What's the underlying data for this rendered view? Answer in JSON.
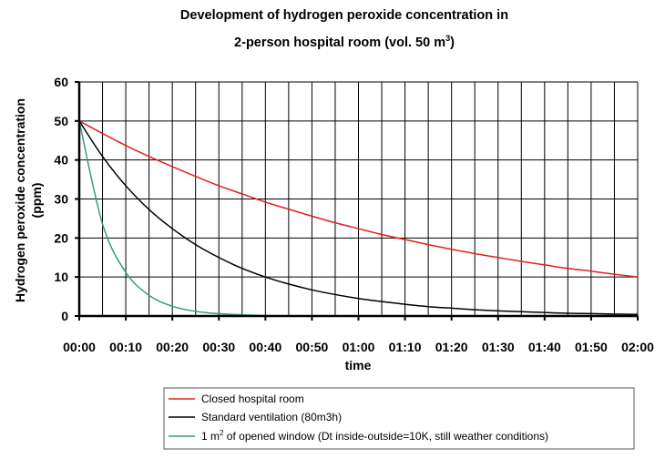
{
  "chart_data": {
    "type": "line",
    "title_line1": "Development of hydrogen peroxide concentration in",
    "title_line2_prefix": "2-person hospital room (vol. 50 m",
    "title_line2_sup": "3",
    "title_line2_suffix": ")",
    "ylabel_line1": "Hydrogen peroxide concentration",
    "ylabel_line2": "(ppm)",
    "xlabel": "time",
    "ylim": [
      0,
      60
    ],
    "yticks": [
      "0",
      "10",
      "20",
      "30",
      "40",
      "50",
      "60"
    ],
    "xlim_minutes": [
      0,
      120
    ],
    "xticks": [
      "00:00",
      "00:10",
      "00:20",
      "00:30",
      "00:40",
      "00:50",
      "01:00",
      "01:10",
      "01:20",
      "01:30",
      "01:40",
      "01:50",
      "02:00"
    ],
    "grid": true,
    "legend_placement": "bottom",
    "x_minutes": [
      0,
      5,
      10,
      15,
      20,
      25,
      30,
      35,
      40,
      45,
      50,
      55,
      60,
      65,
      70,
      75,
      80,
      85,
      90,
      95,
      100,
      105,
      110,
      115,
      120
    ],
    "series": [
      {
        "name": "Closed hospital room",
        "color": "#e02020",
        "values": [
          50,
          46.8,
          43.7,
          40.9,
          38.3,
          35.8,
          33.4,
          31.3,
          29.2,
          27.4,
          25.6,
          23.9,
          22.4,
          20.9,
          19.6,
          18.3,
          17.1,
          16.0,
          15.0,
          14.0,
          13.1,
          12.2,
          11.5,
          10.7,
          10.0
        ]
      },
      {
        "name": "Standard ventilation (80m3h)",
        "color": "#000000",
        "values": [
          50,
          40.9,
          33.4,
          27.3,
          22.4,
          18.3,
          15.0,
          12.2,
          10.0,
          8.2,
          6.7,
          5.5,
          4.5,
          3.7,
          3.0,
          2.4,
          2.0,
          1.6,
          1.3,
          1.1,
          0.9,
          0.7,
          0.6,
          0.5,
          0.4
        ]
      },
      {
        "name_prefix": "1 m",
        "name_sup": "2",
        "name_suffix": " of opened window (Dt inside-outside=10K, still weather conditions)",
        "color": "#3a9a78",
        "values": [
          50,
          23.6,
          11.2,
          5.3,
          2.5,
          1.2,
          0.6,
          0.3,
          0.1,
          0,
          0,
          0,
          0,
          0,
          0,
          0,
          0,
          0,
          0,
          0,
          0,
          0,
          0,
          0,
          0
        ]
      }
    ]
  }
}
